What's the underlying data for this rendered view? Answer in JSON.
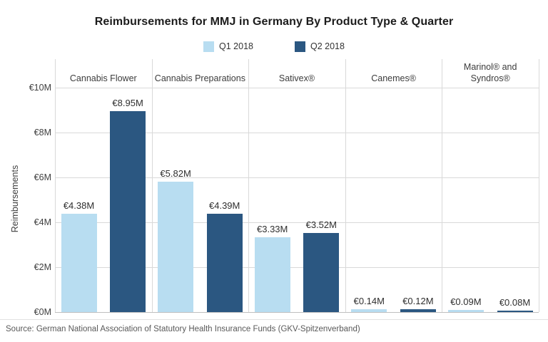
{
  "source": "Source: German National Association of Statutory Health Insurance Funds (GKV-Spitzenverband)",
  "colors": {
    "q1_series": "#B8DDF1",
    "q2_series": "#2B5781",
    "gridline": "#D9D9D9",
    "axis_line": "#BFBFBF"
  },
  "chart_data": {
    "type": "bar",
    "title": "Reimbursements for MMJ in Germany By Product Type & Quarter",
    "categories": [
      "Cannabis Flower",
      "Cannabis Preparations",
      "Sativex®",
      "Canemes®",
      "Marinol® and\nSyndros®"
    ],
    "series": [
      {
        "name": "Q1 2018",
        "color": "#B8DDF1",
        "values": [
          4.38,
          5.82,
          3.33,
          0.14,
          0.09
        ],
        "labels": [
          "€4.38M",
          "€5.82M",
          "€3.33M",
          "€0.14M",
          "€0.09M"
        ]
      },
      {
        "name": "Q2 2018",
        "color": "#2B5781",
        "values": [
          8.95,
          4.39,
          3.52,
          0.12,
          0.08
        ],
        "labels": [
          "€8.95M",
          "€4.39M",
          "€3.52M",
          "€0.12M",
          "€0.08M"
        ]
      }
    ],
    "xlabel": "",
    "ylabel": "Reimbursements",
    "ylim": [
      0,
      10
    ],
    "yticks": {
      "values": [
        0,
        2,
        4,
        6,
        8,
        10
      ],
      "labels": [
        "€0M",
        "€2M",
        "€4M",
        "€6M",
        "€8M",
        "€10M"
      ]
    },
    "grid": true,
    "legend_position": "top-center"
  }
}
